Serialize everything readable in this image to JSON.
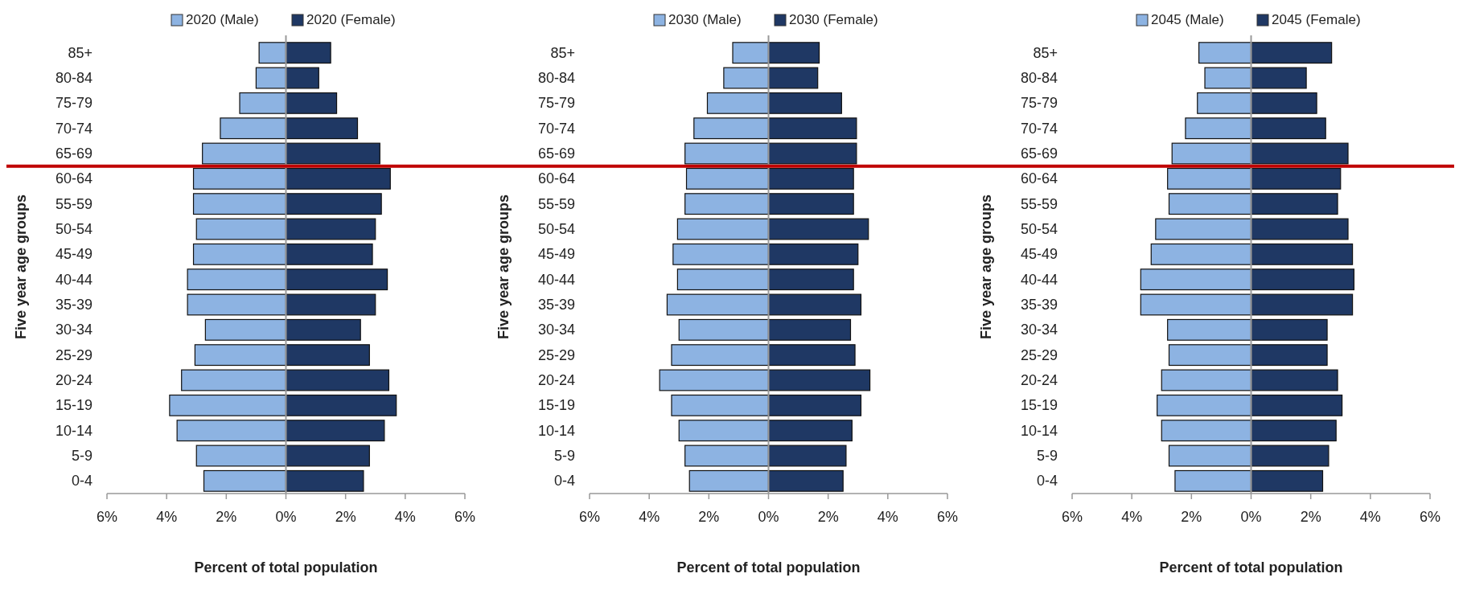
{
  "chart_data": [
    {
      "type": "bar",
      "orientation": "horizontal",
      "stacked": true,
      "legend": "top",
      "grid": false,
      "xlabel": "Percent of total population",
      "ylabel": "Five year age groups",
      "categories": [
        "85+",
        "80-84",
        "75-79",
        "70-74",
        "65-69",
        "60-64",
        "55-59",
        "50-54",
        "45-49",
        "40-44",
        "35-39",
        "30-34",
        "25-29",
        "20-24",
        "15-19",
        "10-14",
        "5-9",
        "0-4"
      ],
      "xlim": [
        -6,
        6
      ],
      "xticks": [
        {
          "value": -6,
          "label": "6%"
        },
        {
          "value": -4,
          "label": "4%"
        },
        {
          "value": -2,
          "label": "2%"
        },
        {
          "value": 0,
          "label": "0%"
        },
        {
          "value": 2,
          "label": "2%"
        },
        {
          "value": 4,
          "label": "4%"
        },
        {
          "value": 6,
          "label": "6%"
        }
      ],
      "ref_lines": [
        {
          "axis": "y",
          "value": "65-69",
          "color": "#c00000"
        }
      ],
      "series": [
        {
          "name": "2020 (Male)",
          "color": "#8db3e2",
          "values": [
            -0.9,
            -1.0,
            -1.55,
            -2.2,
            -2.8,
            -3.1,
            -3.1,
            -3.0,
            -3.1,
            -3.3,
            -3.3,
            -2.7,
            -3.05,
            -3.5,
            -3.9,
            -3.65,
            -3.0,
            -2.75
          ]
        },
        {
          "name": "2020 (Female)",
          "color": "#1f3864",
          "values": [
            1.5,
            1.1,
            1.7,
            2.4,
            3.15,
            3.5,
            3.2,
            3.0,
            2.9,
            3.4,
            3.0,
            2.5,
            2.8,
            3.45,
            3.7,
            3.3,
            2.8,
            2.6
          ]
        }
      ]
    },
    {
      "type": "bar",
      "orientation": "horizontal",
      "stacked": true,
      "legend": "top",
      "grid": false,
      "xlabel": "Percent of total population",
      "ylabel": "Five year age groups",
      "categories": [
        "85+",
        "80-84",
        "75-79",
        "70-74",
        "65-69",
        "60-64",
        "55-59",
        "50-54",
        "45-49",
        "40-44",
        "35-39",
        "30-34",
        "25-29",
        "20-24",
        "15-19",
        "10-14",
        "5-9",
        "0-4"
      ],
      "xlim": [
        -6,
        6
      ],
      "xticks": [
        {
          "value": -6,
          "label": "6%"
        },
        {
          "value": -4,
          "label": "4%"
        },
        {
          "value": -2,
          "label": "2%"
        },
        {
          "value": 0,
          "label": "0%"
        },
        {
          "value": 2,
          "label": "2%"
        },
        {
          "value": 4,
          "label": "4%"
        },
        {
          "value": 6,
          "label": "6%"
        }
      ],
      "ref_lines": [
        {
          "axis": "y",
          "value": "65-69",
          "color": "#c00000"
        }
      ],
      "series": [
        {
          "name": "2030 (Male)",
          "color": "#8db3e2",
          "values": [
            -1.2,
            -1.5,
            -2.05,
            -2.5,
            -2.8,
            -2.75,
            -2.8,
            -3.05,
            -3.2,
            -3.05,
            -3.4,
            -3.0,
            -3.25,
            -3.65,
            -3.25,
            -3.0,
            -2.8,
            -2.65
          ]
        },
        {
          "name": "2030 (Female)",
          "color": "#1f3864",
          "values": [
            1.7,
            1.65,
            2.45,
            2.95,
            2.95,
            2.85,
            2.85,
            3.35,
            3.0,
            2.85,
            3.1,
            2.75,
            2.9,
            3.4,
            3.1,
            2.8,
            2.6,
            2.5
          ]
        }
      ]
    },
    {
      "type": "bar",
      "orientation": "horizontal",
      "stacked": true,
      "legend": "top",
      "grid": false,
      "xlabel": "Percent of total population",
      "ylabel": "Five year age groups",
      "categories": [
        "85+",
        "80-84",
        "75-79",
        "70-74",
        "65-69",
        "60-64",
        "55-59",
        "50-54",
        "45-49",
        "40-44",
        "35-39",
        "30-34",
        "25-29",
        "20-24",
        "15-19",
        "10-14",
        "5-9",
        "0-4"
      ],
      "xlim": [
        -6,
        6
      ],
      "xticks": [
        {
          "value": -6,
          "label": "6%"
        },
        {
          "value": -4,
          "label": "4%"
        },
        {
          "value": -2,
          "label": "2%"
        },
        {
          "value": 0,
          "label": "0%"
        },
        {
          "value": 2,
          "label": "2%"
        },
        {
          "value": 4,
          "label": "4%"
        },
        {
          "value": 6,
          "label": "6%"
        }
      ],
      "ref_lines": [
        {
          "axis": "y",
          "value": "65-69",
          "color": "#c00000"
        }
      ],
      "series": [
        {
          "name": "2045 (Male)",
          "color": "#8db3e2",
          "values": [
            -1.75,
            -1.55,
            -1.8,
            -2.2,
            -2.65,
            -2.8,
            -2.75,
            -3.2,
            -3.35,
            -3.7,
            -3.7,
            -2.8,
            -2.75,
            -3.0,
            -3.15,
            -3.0,
            -2.75,
            -2.55
          ]
        },
        {
          "name": "2045 (Female)",
          "color": "#1f3864",
          "values": [
            2.7,
            1.85,
            2.2,
            2.5,
            3.25,
            3.0,
            2.9,
            3.25,
            3.4,
            3.45,
            3.4,
            2.55,
            2.55,
            2.9,
            3.05,
            2.85,
            2.6,
            2.4
          ]
        }
      ]
    }
  ]
}
